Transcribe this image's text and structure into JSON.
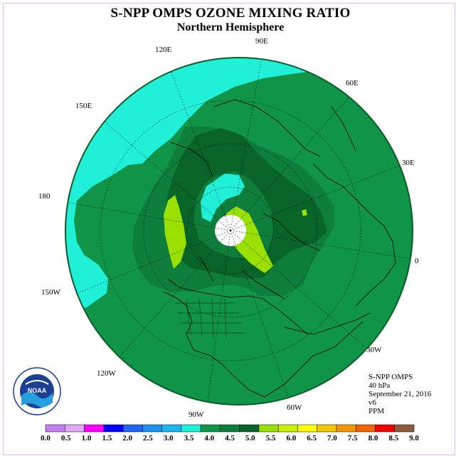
{
  "header": {
    "title": "S-NPP OMPS OZONE MIXING RATIO",
    "subtitle": "Northern Hemisphere"
  },
  "info": {
    "instrument": "S-NPP OMPS",
    "level": "40 hPa",
    "date": "September 21, 2016",
    "version": "v6",
    "units": "PPM"
  },
  "longitude_labels": [
    "90E",
    "60E",
    "30E",
    "0",
    "30W",
    "60W",
    "90W",
    "120W",
    "150W",
    "180",
    "150E",
    "120E"
  ],
  "logo": {
    "text": "NOAA",
    "ring_text": "NATIONAL OCEANIC AND ATMOSPHERIC ADMINISTRATION · U.S. DEPARTMENT OF COMMERCE"
  },
  "colorbar": {
    "colors": [
      "#c080f0",
      "#e0a8f0",
      "#ff00ff",
      "#0000ff",
      "#1e64f0",
      "#2090f0",
      "#20b4f0",
      "#20f0d8",
      "#0f9448",
      "#0e7e3c",
      "#086428",
      "#99e000",
      "#c8f000",
      "#ffff00",
      "#f0c800",
      "#f09600",
      "#f06400",
      "#f00000",
      "#8c5a3c"
    ],
    "ticks": [
      "0.0",
      "0.5",
      "1.0",
      "1.5",
      "2.0",
      "2.5",
      "3.0",
      "3.5",
      "4.0",
      "4.5",
      "5.0",
      "5.5",
      "6.0",
      "6.5",
      "7.0",
      "7.5",
      "8.0",
      "8.5",
      "9.0"
    ]
  },
  "map_colors": {
    "ocean_bg": "#0f9448",
    "low_band": "#20f0d8",
    "mid_band": "#0e7e3c",
    "high_band": "#086428",
    "max_band": "#99e000",
    "polar_gap": "#ffffff"
  }
}
